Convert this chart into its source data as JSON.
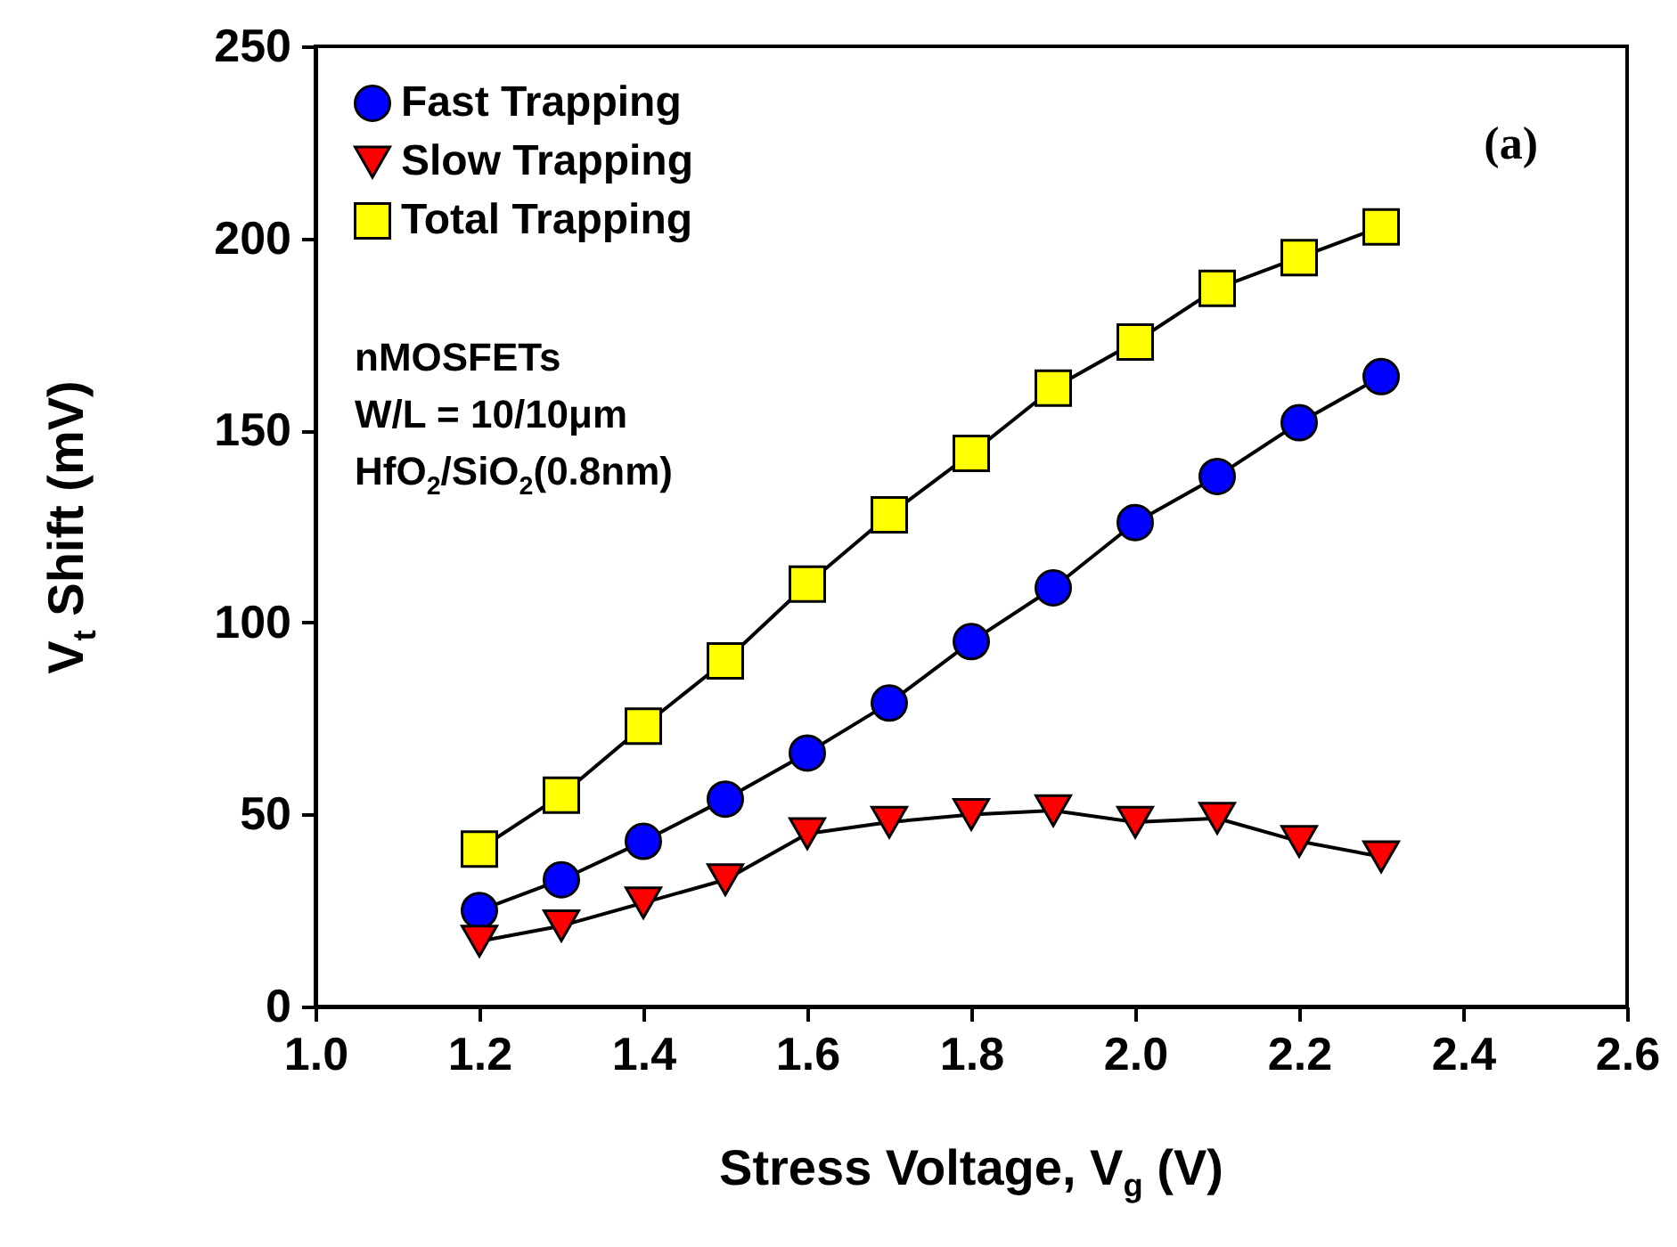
{
  "chart_data": {
    "type": "line",
    "xlabel": "Stress Voltage, V$_{g}$ (V)",
    "ylabel": "V$_{t}$ Shift (mV)",
    "x": [
      1.2,
      1.3,
      1.4,
      1.5,
      1.6,
      1.7,
      1.8,
      1.9,
      2.0,
      2.1,
      2.2,
      2.3
    ],
    "series": [
      {
        "name": "Fast   Trapping",
        "color": "#0000ff",
        "marker": "circle",
        "values": [
          25,
          33,
          43,
          54,
          66,
          79,
          95,
          109,
          126,
          138,
          152,
          164
        ]
      },
      {
        "name": "Slow  Trapping",
        "color": "#ff0000",
        "marker": "triangle",
        "values": [
          17,
          21,
          27,
          33,
          45,
          48,
          50,
          51,
          48,
          49,
          43,
          39
        ]
      },
      {
        "name": "Total  Trapping",
        "color": "#ffff00",
        "marker": "square",
        "values": [
          41,
          55,
          73,
          90,
          110,
          128,
          144,
          161,
          173,
          187,
          195,
          203
        ]
      }
    ],
    "xlim": [
      1.0,
      2.6
    ],
    "xticks": [
      {
        "value": 1.0,
        "label": "1.0"
      },
      1.2,
      1.4,
      1.6,
      1.8,
      {
        "value": 2.0,
        "label": "2.0"
      },
      2.2,
      2.4,
      2.6
    ],
    "ylim": [
      0,
      250
    ],
    "yticks": [
      0,
      50,
      100,
      150,
      200,
      250
    ],
    "legend": "top left",
    "grid": false,
    "line_style": "solid",
    "annotations": [
      "(a)",
      "nMOSFETs",
      "W/L = 10/10μm",
      "HfO$_{2}$/SiO$_{2}$(0.8nm)"
    ]
  }
}
